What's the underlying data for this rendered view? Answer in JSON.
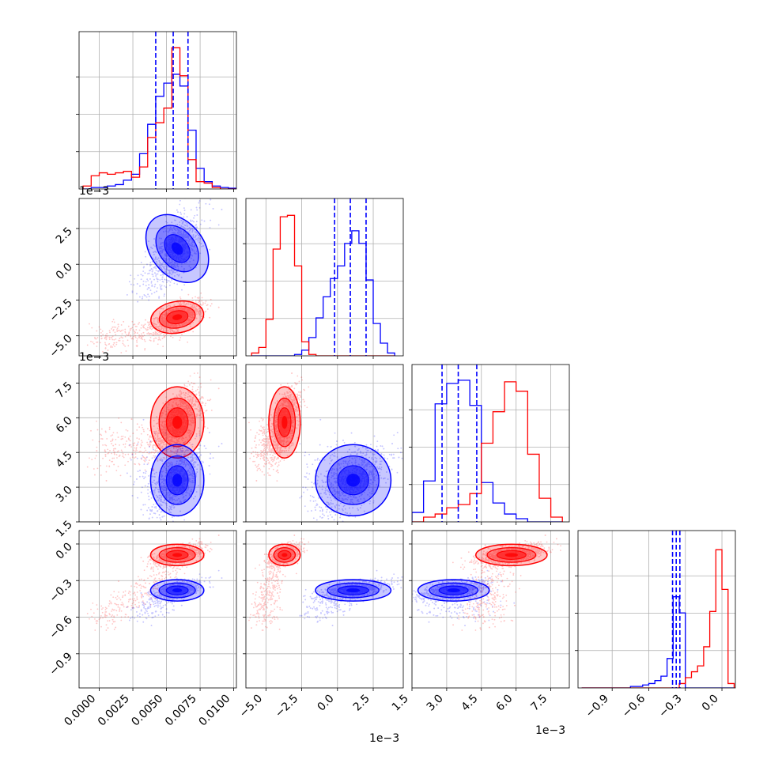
{
  "chart_data": {
    "type": "corner",
    "title": "",
    "parameters": 4,
    "series": [
      {
        "name": "",
        "color": "#0000ff"
      },
      {
        "name": "",
        "color": "#ff0000"
      }
    ],
    "ranges": [
      [
        -0.0015,
        0.0102
      ],
      [
        -0.0064,
        0.0046
      ],
      [
        0.0015,
        0.0083
      ],
      [
        -1.18,
        0.11
      ]
    ],
    "tick_labels": [
      [
        "0.0000",
        "0.0025",
        "0.0050",
        "0.0075",
        "0.0100"
      ],
      [
        "−5.0",
        "−2.5",
        "0.0",
        "2.5"
      ],
      [
        "1.5",
        "3.0",
        "4.5",
        "6.0",
        "7.5"
      ],
      [
        "−0.9",
        "−0.6",
        "−0.3",
        "0.0"
      ]
    ],
    "offset_text": "1e−3",
    "grid": true,
    "quantiles": {
      "color": "#0000ff",
      "p0": [
        0.0042,
        0.0055,
        0.0066
      ],
      "p1": [
        -0.0002,
        0.0009,
        0.002
      ],
      "p2": [
        0.0028,
        0.0035,
        0.0043
      ],
      "p3": [
        -0.405,
        -0.375,
        -0.345
      ]
    },
    "marginals": [
      {
        "bins": [
          -0.0012,
          -0.0006,
          0.0,
          0.0006,
          0.0012,
          0.0018,
          0.0024,
          0.003,
          0.0036,
          0.0042,
          0.0048,
          0.0054,
          0.006,
          0.0066,
          0.0072,
          0.0078,
          0.0084,
          0.009,
          0.0096,
          0.0102
        ],
        "blue": [
          0.0,
          0.01,
          0.01,
          0.02,
          0.03,
          0.06,
          0.1,
          0.24,
          0.44,
          0.63,
          0.72,
          0.78,
          0.7,
          0.4,
          0.14,
          0.05,
          0.02,
          0.01,
          0.005
        ],
        "red": [
          0.02,
          0.09,
          0.11,
          0.1,
          0.11,
          0.12,
          0.08,
          0.15,
          0.35,
          0.45,
          0.55,
          0.96,
          0.77,
          0.2,
          0.05,
          0.04,
          0.01,
          0.0,
          0.0
        ]
      },
      {
        "bins": [
          -0.006,
          -0.0055,
          -0.005,
          -0.0045,
          -0.004,
          -0.0035,
          -0.003,
          -0.0025,
          -0.002,
          -0.0015,
          -0.001,
          -0.0005,
          0.0,
          0.0005,
          0.001,
          0.0015,
          0.002,
          0.0025,
          0.003,
          0.0035,
          0.004
        ],
        "blue": [
          0.0,
          0.0,
          0.0,
          0.0,
          0.0,
          0.0,
          0.01,
          0.04,
          0.13,
          0.27,
          0.42,
          0.55,
          0.64,
          0.8,
          0.89,
          0.8,
          0.54,
          0.23,
          0.09,
          0.02
        ],
        "red": [
          0.02,
          0.06,
          0.26,
          0.76,
          0.99,
          1.0,
          0.64,
          0.1,
          0.01,
          0.0,
          0.0,
          0.0,
          0.0,
          0.0,
          0.0,
          0.0,
          0.0,
          0.0,
          0.0,
          0.0
        ]
      },
      {
        "bins": [
          0.0015,
          0.002,
          0.0025,
          0.003,
          0.0035,
          0.004,
          0.0045,
          0.005,
          0.0055,
          0.006,
          0.0065,
          0.007,
          0.0075,
          0.008
        ],
        "blue": [
          0.06,
          0.26,
          0.75,
          0.88,
          0.9,
          0.74,
          0.25,
          0.12,
          0.05,
          0.02,
          0.0,
          0.0,
          0.0
        ],
        "red": [
          0.0,
          0.03,
          0.05,
          0.09,
          0.11,
          0.18,
          0.5,
          0.7,
          0.89,
          0.83,
          0.43,
          0.15,
          0.03
        ]
      },
      {
        "bins": [
          -1.15,
          -1.1,
          -1.05,
          -1.0,
          -0.95,
          -0.9,
          -0.85,
          -0.8,
          -0.75,
          -0.7,
          -0.65,
          -0.6,
          -0.55,
          -0.5,
          -0.45,
          -0.4,
          -0.35,
          -0.3,
          -0.25,
          -0.2,
          -0.15,
          -0.1,
          -0.05,
          0.0,
          0.05,
          0.1
        ],
        "blue": [
          0.0,
          0.0,
          0.0,
          0.0,
          0.0,
          0.0,
          0.0,
          0.0,
          0.01,
          0.01,
          0.02,
          0.03,
          0.05,
          0.08,
          0.2,
          0.62,
          0.51,
          0.0,
          0.0,
          0.0,
          0.0,
          0.0,
          0.0,
          0.0,
          0.0
        ],
        "red": [
          0.0,
          0.0,
          0.0,
          0.0,
          0.0,
          0.0,
          0.0,
          0.0,
          0.0,
          0.0,
          0.0,
          0.0,
          0.0,
          0.0,
          0.0,
          0.0,
          0.03,
          0.07,
          0.11,
          0.15,
          0.28,
          0.52,
          0.94,
          0.67,
          0.03
        ]
      }
    ],
    "clusters": {
      "blue": {
        "mean": [
          0.0058,
          0.0011,
          0.0033,
          -0.38
        ],
        "sd": [
          0.0009,
          0.0012,
          0.0007,
          0.04
        ]
      },
      "red": {
        "mean": [
          0.0058,
          -0.0037,
          0.0058,
          -0.09
        ],
        "sd": [
          0.0009,
          0.0005,
          0.0007,
          0.04
        ]
      }
    }
  }
}
